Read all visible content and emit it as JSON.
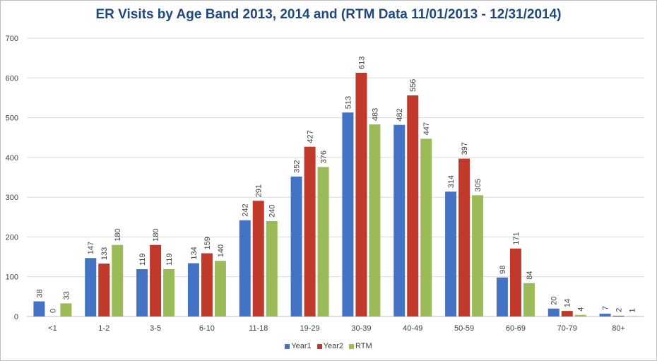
{
  "chart_data": {
    "type": "bar",
    "title": "ER Visits by Age Band 2013, 2014 and (RTM Data 11/01/2013 - 12/31/2014)",
    "xlabel": "",
    "ylabel": "",
    "ylim": [
      0,
      700
    ],
    "yticks": [
      0,
      100,
      200,
      300,
      400,
      500,
      600,
      700
    ],
    "grid": true,
    "legend_position": "bottom",
    "categories": [
      "<1",
      "1-2",
      "3-5",
      "6-10",
      "11-18",
      "19-29",
      "30-39",
      "40-49",
      "50-59",
      "60-69",
      "70-79",
      "80+"
    ],
    "series": [
      {
        "name": "Year1",
        "color": "#4472c4",
        "values": [
          38,
          147,
          119,
          134,
          242,
          352,
          513,
          482,
          314,
          98,
          20,
          7
        ]
      },
      {
        "name": "Year2",
        "color": "#c0392b",
        "values": [
          0,
          133,
          180,
          159,
          291,
          427,
          613,
          556,
          397,
          171,
          14,
          2
        ]
      },
      {
        "name": "RTM",
        "color": "#9bbb59",
        "values": [
          33,
          180,
          119,
          140,
          240,
          376,
          483,
          447,
          305,
          84,
          4,
          1
        ]
      }
    ]
  }
}
